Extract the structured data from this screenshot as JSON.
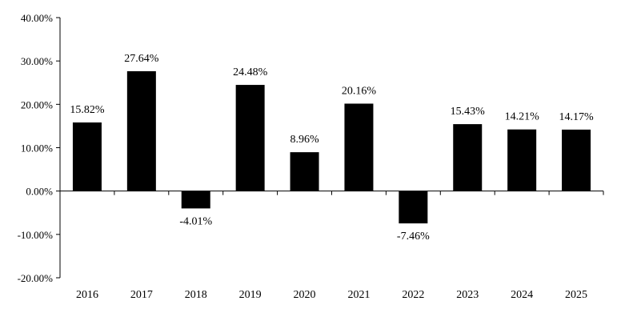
{
  "chart_data": {
    "type": "bar",
    "categories": [
      "2016",
      "2017",
      "2018",
      "2019",
      "2020",
      "2021",
      "2022",
      "2023",
      "2024",
      "2025"
    ],
    "values": [
      15.82,
      27.64,
      -4.01,
      24.48,
      8.96,
      20.16,
      -7.46,
      15.43,
      14.21,
      14.17
    ],
    "data_labels": [
      "15.82%",
      "27.64%",
      "-4.01%",
      "24.48%",
      "8.96%",
      "20.16%",
      "-7.46%",
      "15.43%",
      "14.21%",
      "14.17%"
    ],
    "title": "",
    "xlabel": "",
    "ylabel": "",
    "ylim": [
      -20,
      40
    ],
    "yticks": [
      40,
      30,
      20,
      10,
      0,
      -10,
      -20
    ],
    "ytick_labels": [
      "40.00%",
      "30.00%",
      "20.00%",
      "10.00%",
      "0.00%",
      "-10.00%",
      "-20.00%"
    ],
    "bar_color": "#000000",
    "grid": false,
    "legend": "none"
  }
}
